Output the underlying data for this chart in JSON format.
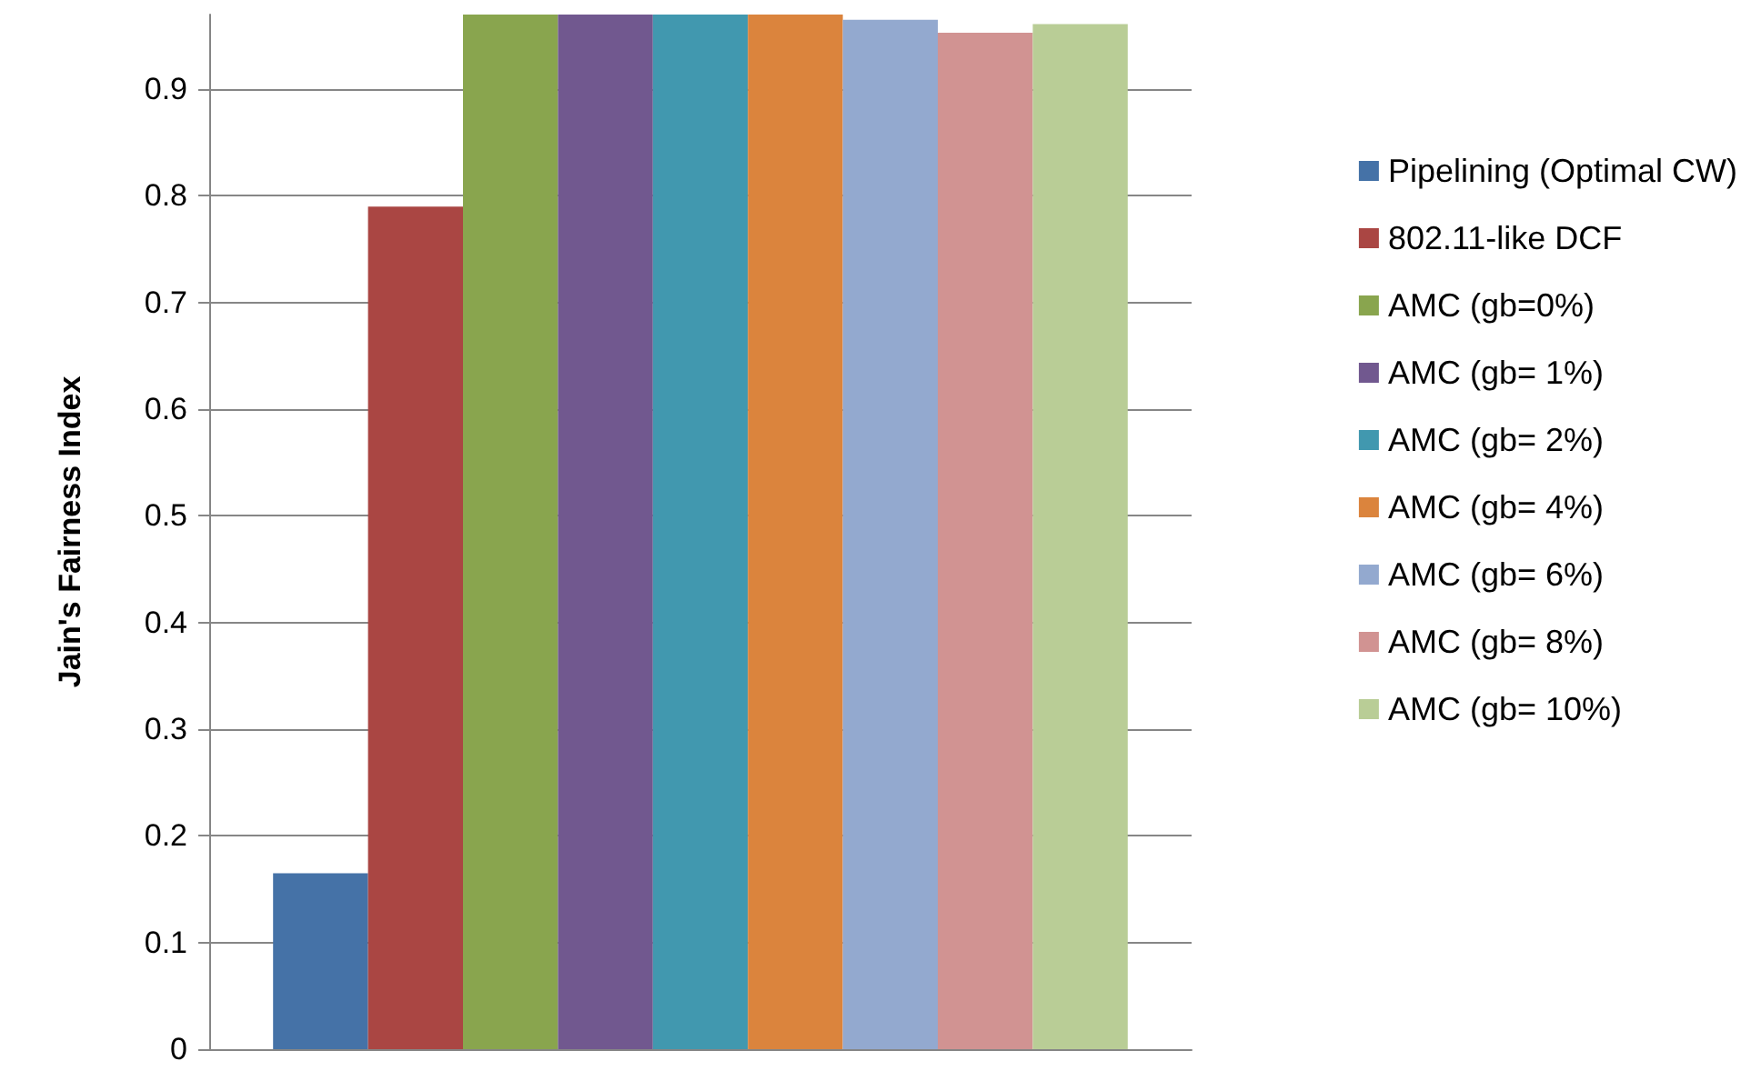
{
  "chart_data": {
    "type": "bar",
    "ylabel": "Jain's Fairness Index",
    "categories": [
      null
    ],
    "ylim": [
      0,
      0.97
    ],
    "yticks": [
      0,
      0.1,
      0.2,
      0.3,
      0.4,
      0.5,
      0.6,
      0.7,
      0.8,
      0.9
    ],
    "grid": "y",
    "legend": "right",
    "series": [
      {
        "name": "Pipelining (Optimal CW)",
        "color": "#4572a7",
        "values": [
          0.165
        ]
      },
      {
        "name": "802.11-like DCF",
        "color": "#aa4643",
        "values": [
          0.79
        ]
      },
      {
        "name": "AMC (gb=0%)",
        "color": "#89a54e",
        "values": [
          0.97
        ]
      },
      {
        "name": "AMC (gb= 1%)",
        "color": "#71588f",
        "values": [
          0.97
        ]
      },
      {
        "name": "AMC (gb= 2%)",
        "color": "#4198af",
        "values": [
          0.97
        ]
      },
      {
        "name": "AMC (gb= 4%)",
        "color": "#db843d",
        "values": [
          0.97
        ]
      },
      {
        "name": "AMC (gb= 6%)",
        "color": "#93a9cf",
        "values": [
          0.965
        ]
      },
      {
        "name": "AMC (gb= 8%)",
        "color": "#d19392",
        "values": [
          0.953
        ]
      },
      {
        "name": "AMC (gb= 10%)",
        "color": "#b9cd96",
        "values": [
          0.961
        ]
      }
    ]
  }
}
